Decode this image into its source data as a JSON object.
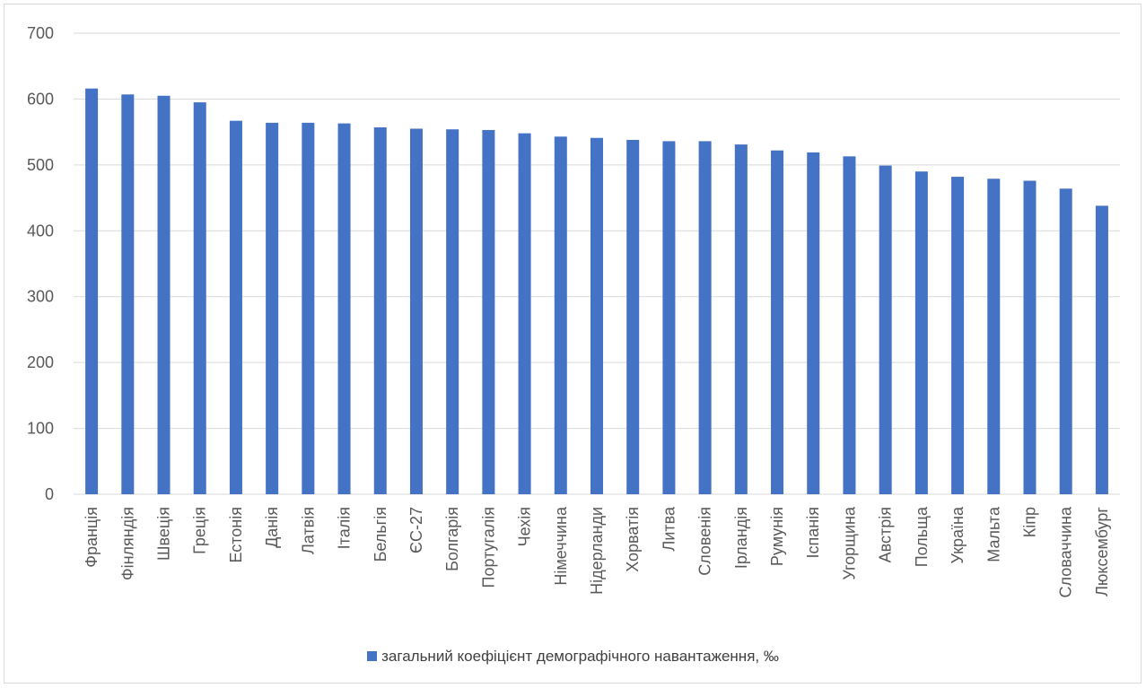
{
  "chart_data": {
    "type": "bar",
    "title": "",
    "xlabel": "",
    "ylabel": "",
    "ylim": [
      0,
      700
    ],
    "yticks": [
      0,
      100,
      200,
      300,
      400,
      500,
      600,
      700
    ],
    "grid": true,
    "legend_position": "bottom",
    "bar_color": "#4472c4",
    "categories": [
      "Франція",
      "Фінляндія",
      "Швеція",
      "Греція",
      "Естонія",
      "Данія",
      "Латвія",
      "Італія",
      "Бельгія",
      "ЄС-27",
      "Болгарія",
      "Португалія",
      "Чехія",
      "Німеччина",
      "Нідерланди",
      "Хорватія",
      "Литва",
      "Словенія",
      "Ірландія",
      "Румунія",
      "Іспанія",
      "Угорщина",
      "Австрія",
      "Польща",
      "Україна",
      "Мальта",
      "Кіпр",
      "Словаччина",
      "Люксембург"
    ],
    "series": [
      {
        "name": "загальний коефіцієнт демографічного навантаження, ‰",
        "values": [
          616,
          607,
          605,
          595,
          567,
          564,
          564,
          563,
          557,
          555,
          554,
          553,
          548,
          543,
          541,
          538,
          536,
          536,
          531,
          522,
          519,
          513,
          499,
          490,
          482,
          479,
          476,
          464,
          438
        ]
      }
    ]
  }
}
